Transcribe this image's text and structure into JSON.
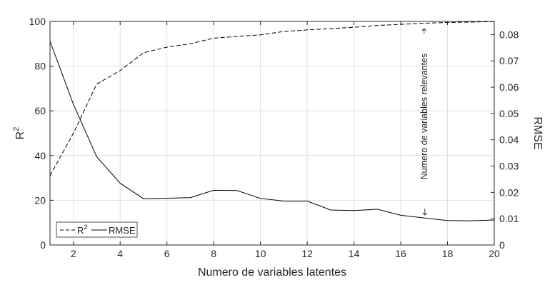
{
  "chart_data": {
    "type": "line",
    "title": "",
    "xlabel": "Numero de variables latentes",
    "ylabel_left": "R",
    "ylabel_left_sup": "2",
    "ylabel_right": "RMSE",
    "xlim": [
      1,
      20
    ],
    "ylim_left": [
      0,
      100
    ],
    "ylim_right": [
      0,
      0.085
    ],
    "grid": true,
    "legend_placement": "bottom-left",
    "x_ticks": [
      2,
      4,
      6,
      8,
      10,
      12,
      14,
      16,
      18,
      20
    ],
    "x_tick_labels": [
      "2",
      "4",
      "6",
      "8",
      "10",
      "12",
      "14",
      "16",
      "18",
      "20"
    ],
    "yleft_ticks": [
      0,
      20,
      40,
      60,
      80,
      100
    ],
    "yleft_tick_labels": [
      "0",
      "20",
      "40",
      "60",
      "80",
      "100"
    ],
    "yright_ticks": [
      0,
      0.01,
      0.02,
      0.03,
      0.04,
      0.05,
      0.06,
      0.07,
      0.08
    ],
    "yright_tick_labels": [
      "0",
      "0.01",
      "0.02",
      "0.03",
      "0.04",
      "0.05",
      "0.06",
      "0.07",
      "0.08"
    ],
    "x": [
      1,
      2,
      3,
      4,
      5,
      6,
      7,
      8,
      9,
      10,
      11,
      12,
      13,
      14,
      15,
      16,
      17,
      18,
      19,
      20
    ],
    "series": [
      {
        "name": "R",
        "name_sup": "2",
        "axis": "left",
        "style": "dashed",
        "color": "#000000",
        "values": [
          31,
          50,
          72,
          78,
          86,
          88.5,
          90,
          92.5,
          93.3,
          94,
          95.5,
          96.2,
          96.8,
          97.4,
          98.2,
          98.7,
          99.2,
          99.5,
          99.7,
          99.9
        ]
      },
      {
        "name": "RMSE",
        "axis": "right",
        "style": "solid",
        "color": "#000000",
        "values": [
          0.0775,
          0.0535,
          0.0335,
          0.0235,
          0.0176,
          0.0178,
          0.018,
          0.0208,
          0.0207,
          0.0177,
          0.0167,
          0.0167,
          0.0133,
          0.0131,
          0.0136,
          0.0113,
          0.0103,
          0.0093,
          0.0092,
          0.0095
        ]
      }
    ],
    "annotation": {
      "text": "Numero de variables relevantes",
      "x": 17
    }
  }
}
